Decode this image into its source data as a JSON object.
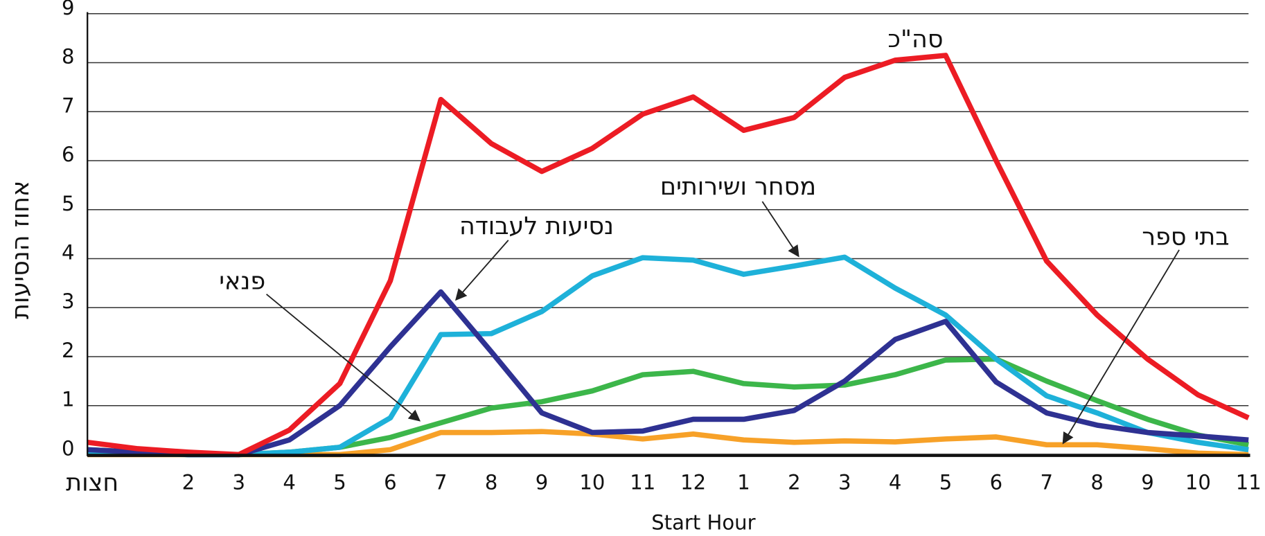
{
  "chart_data": {
    "type": "line",
    "x_label": "Start Hour",
    "y_label": "אחוז הנסיעות",
    "categories": [
      "חצות",
      null,
      "2",
      "3",
      "4",
      "5",
      "6",
      "7",
      "8",
      "9",
      "10",
      "11",
      "12",
      "1",
      "2",
      "3",
      "4",
      "5",
      "6",
      "7",
      "8",
      "9",
      "10",
      "11"
    ],
    "ylim": [
      0,
      9
    ],
    "yticks": [
      0,
      1,
      2,
      3,
      4,
      5,
      6,
      7,
      8,
      9
    ],
    "grid": true,
    "series": [
      {
        "name": "סה\"כ",
        "color": "#ec1c24",
        "values": [
          0.25,
          0.12,
          0.05,
          0.0,
          0.5,
          1.45,
          3.55,
          7.25,
          6.35,
          5.78,
          6.25,
          6.95,
          7.3,
          6.62,
          6.88,
          7.7,
          8.05,
          8.15,
          6.0,
          3.95,
          2.85,
          1.95,
          1.22,
          0.75
        ]
      },
      {
        "name": "נסיעות לעבודה",
        "color": "#2e3192",
        "values": [
          0.1,
          0.05,
          0.0,
          0.0,
          0.3,
          1.0,
          2.2,
          3.32,
          2.1,
          0.85,
          0.45,
          0.48,
          0.72,
          0.72,
          0.9,
          1.5,
          2.35,
          2.72,
          1.48,
          0.85,
          0.6,
          0.45,
          0.38,
          0.3
        ]
      },
      {
        "name": "מסחר ושירותים",
        "color": "#1eb1d9",
        "values": [
          0.05,
          0.02,
          0.0,
          0.0,
          0.05,
          0.15,
          0.75,
          2.45,
          2.47,
          2.92,
          3.65,
          4.02,
          3.97,
          3.68,
          3.85,
          4.03,
          3.4,
          2.85,
          1.95,
          1.2,
          0.85,
          0.45,
          0.25,
          0.1
        ]
      },
      {
        "name": "פנאי",
        "color": "#3cb64a",
        "values": [
          0.1,
          0.05,
          0.0,
          0.0,
          0.05,
          0.15,
          0.35,
          0.65,
          0.95,
          1.08,
          1.3,
          1.63,
          1.7,
          1.45,
          1.38,
          1.42,
          1.63,
          1.93,
          1.95,
          1.5,
          1.1,
          0.72,
          0.4,
          0.2
        ]
      },
      {
        "name": "בתי ספר",
        "color": "#f7a128",
        "values": [
          0.0,
          0.0,
          0.0,
          0.0,
          0.0,
          0.0,
          0.1,
          0.45,
          0.45,
          0.47,
          0.42,
          0.32,
          0.42,
          0.3,
          0.25,
          0.28,
          0.26,
          0.32,
          0.36,
          0.2,
          0.2,
          0.12,
          0.03,
          0.0
        ]
      }
    ]
  }
}
